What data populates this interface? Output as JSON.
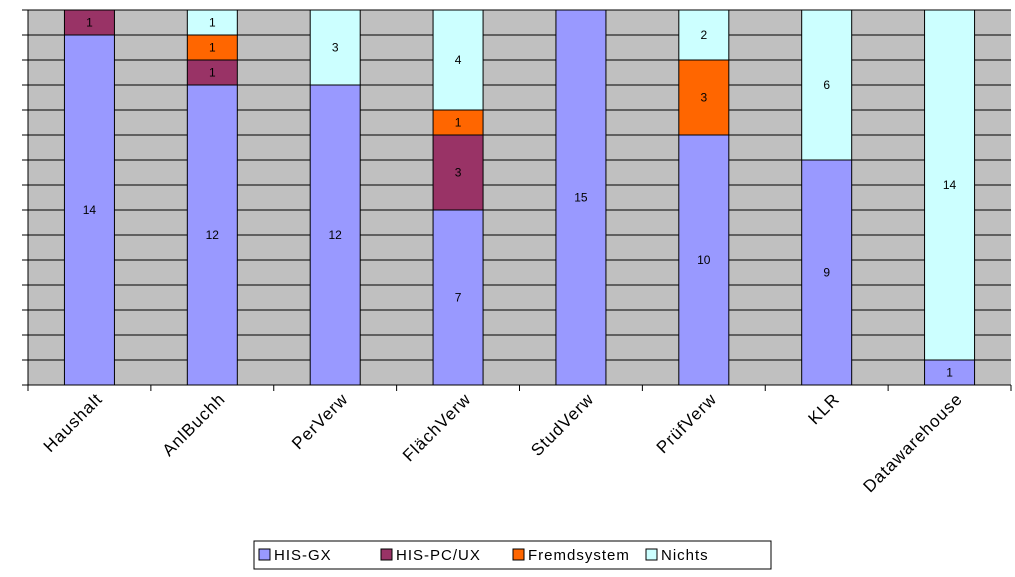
{
  "chart_data": {
    "type": "bar",
    "stacked": true,
    "categories": [
      "Haushalt",
      "AnlBuchh",
      "PerVerw",
      "FlächVerw",
      "StudVerw",
      "PrüfVerw",
      "KLR",
      "Datawarehouse"
    ],
    "series": [
      {
        "name": "HIS-GX",
        "color": "#9999ff",
        "values": [
          14,
          12,
          12,
          7,
          15,
          10,
          9,
          1
        ]
      },
      {
        "name": "HIS-PC/UX",
        "color": "#993366",
        "values": [
          1,
          1,
          0,
          3,
          0,
          0,
          0,
          0
        ]
      },
      {
        "name": "Fremdsystem",
        "color": "#ff6600",
        "values": [
          0,
          1,
          0,
          1,
          0,
          3,
          0,
          0
        ]
      },
      {
        "name": "Nichts",
        "color": "#ccffff",
        "values": [
          0,
          1,
          3,
          4,
          0,
          2,
          6,
          14
        ]
      }
    ],
    "ylim": [
      0,
      15
    ],
    "grid": true,
    "plot_background": "#c0c0c0",
    "legend_position": "bottom"
  }
}
